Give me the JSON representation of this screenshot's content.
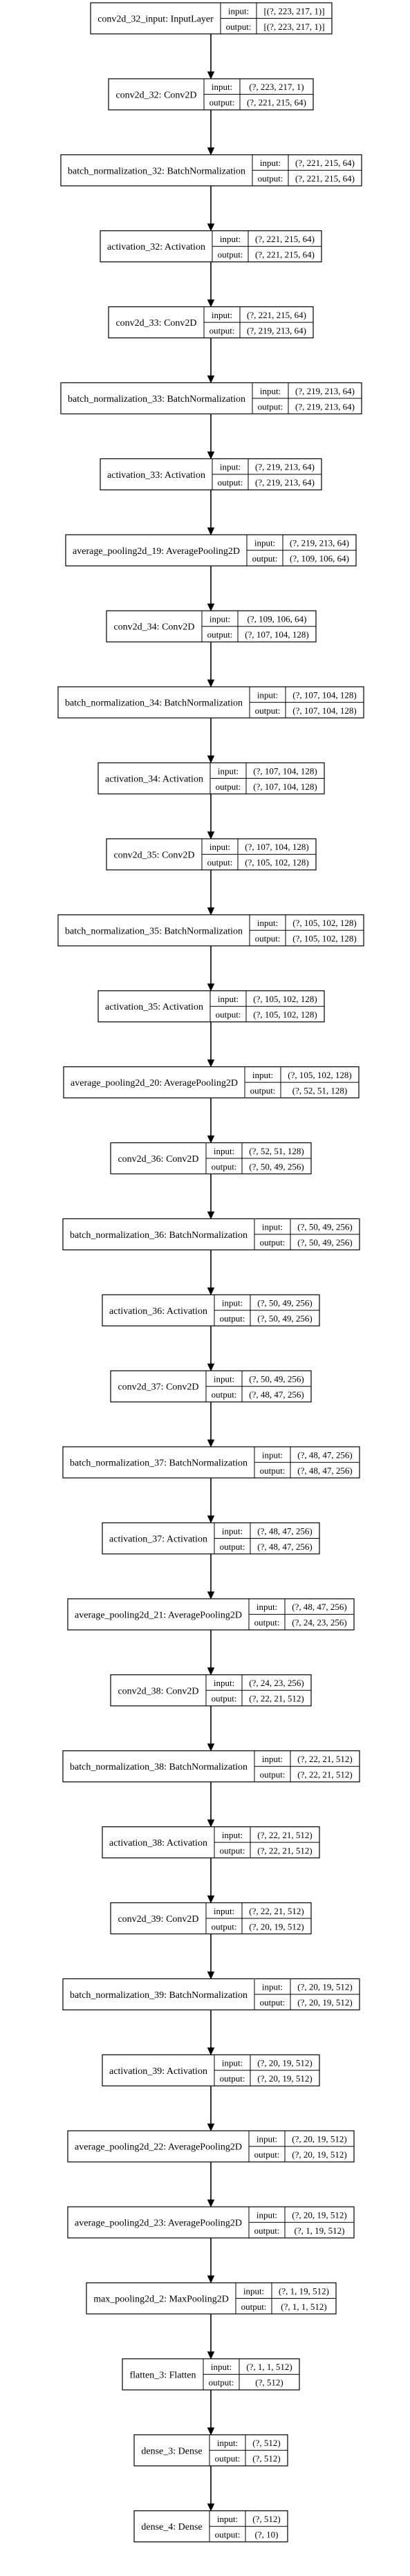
{
  "labels": {
    "input": "input:",
    "output": "output:"
  },
  "layers": [
    {
      "name": "conv2d_32_input: InputLayer",
      "input": "[(?, 223, 217, 1)]",
      "output": "[(?, 223, 217, 1)]"
    },
    {
      "name": "conv2d_32: Conv2D",
      "input": "(?, 223, 217, 1)",
      "output": "(?, 221, 215, 64)"
    },
    {
      "name": "batch_normalization_32: BatchNormalization",
      "input": "(?, 221, 215, 64)",
      "output": "(?, 221, 215, 64)"
    },
    {
      "name": "activation_32: Activation",
      "input": "(?, 221, 215, 64)",
      "output": "(?, 221, 215, 64)"
    },
    {
      "name": "conv2d_33: Conv2D",
      "input": "(?, 221, 215, 64)",
      "output": "(?, 219, 213, 64)"
    },
    {
      "name": "batch_normalization_33: BatchNormalization",
      "input": "(?, 219, 213, 64)",
      "output": "(?, 219, 213, 64)"
    },
    {
      "name": "activation_33: Activation",
      "input": "(?, 219, 213, 64)",
      "output": "(?, 219, 213, 64)"
    },
    {
      "name": "average_pooling2d_19: AveragePooling2D",
      "input": "(?, 219, 213, 64)",
      "output": "(?, 109, 106, 64)"
    },
    {
      "name": "conv2d_34: Conv2D",
      "input": "(?, 109, 106, 64)",
      "output": "(?, 107, 104, 128)"
    },
    {
      "name": "batch_normalization_34: BatchNormalization",
      "input": "(?, 107, 104, 128)",
      "output": "(?, 107, 104, 128)"
    },
    {
      "name": "activation_34: Activation",
      "input": "(?, 107, 104, 128)",
      "output": "(?, 107, 104, 128)"
    },
    {
      "name": "conv2d_35: Conv2D",
      "input": "(?, 107, 104, 128)",
      "output": "(?, 105, 102, 128)"
    },
    {
      "name": "batch_normalization_35: BatchNormalization",
      "input": "(?, 105, 102, 128)",
      "output": "(?, 105, 102, 128)"
    },
    {
      "name": "activation_35: Activation",
      "input": "(?, 105, 102, 128)",
      "output": "(?, 105, 102, 128)"
    },
    {
      "name": "average_pooling2d_20: AveragePooling2D",
      "input": "(?, 105, 102, 128)",
      "output": "(?, 52, 51, 128)"
    },
    {
      "name": "conv2d_36: Conv2D",
      "input": "(?, 52, 51, 128)",
      "output": "(?, 50, 49, 256)"
    },
    {
      "name": "batch_normalization_36: BatchNormalization",
      "input": "(?, 50, 49, 256)",
      "output": "(?, 50, 49, 256)"
    },
    {
      "name": "activation_36: Activation",
      "input": "(?, 50, 49, 256)",
      "output": "(?, 50, 49, 256)"
    },
    {
      "name": "conv2d_37: Conv2D",
      "input": "(?, 50, 49, 256)",
      "output": "(?, 48, 47, 256)"
    },
    {
      "name": "batch_normalization_37: BatchNormalization",
      "input": "(?, 48, 47, 256)",
      "output": "(?, 48, 47, 256)"
    },
    {
      "name": "activation_37: Activation",
      "input": "(?, 48, 47, 256)",
      "output": "(?, 48, 47, 256)"
    },
    {
      "name": "average_pooling2d_21: AveragePooling2D",
      "input": "(?, 48, 47, 256)",
      "output": "(?, 24, 23, 256)"
    },
    {
      "name": "conv2d_38: Conv2D",
      "input": "(?, 24, 23, 256)",
      "output": "(?, 22, 21, 512)"
    },
    {
      "name": "batch_normalization_38: BatchNormalization",
      "input": "(?, 22, 21, 512)",
      "output": "(?, 22, 21, 512)"
    },
    {
      "name": "activation_38: Activation",
      "input": "(?, 22, 21, 512)",
      "output": "(?, 22, 21, 512)"
    },
    {
      "name": "conv2d_39: Conv2D",
      "input": "(?, 22, 21, 512)",
      "output": "(?, 20, 19, 512)"
    },
    {
      "name": "batch_normalization_39: BatchNormalization",
      "input": "(?, 20, 19, 512)",
      "output": "(?, 20, 19, 512)"
    },
    {
      "name": "activation_39: Activation",
      "input": "(?, 20, 19, 512)",
      "output": "(?, 20, 19, 512)"
    },
    {
      "name": "average_pooling2d_22: AveragePooling2D",
      "input": "(?, 20, 19, 512)",
      "output": "(?, 20, 19, 512)"
    },
    {
      "name": "average_pooling2d_23: AveragePooling2D",
      "input": "(?, 20, 19, 512)",
      "output": "(?, 1, 19, 512)"
    },
    {
      "name": "max_pooling2d_2: MaxPooling2D",
      "input": "(?, 1, 19, 512)",
      "output": "(?, 1, 1, 512)"
    },
    {
      "name": "flatten_3: Flatten",
      "input": "(?, 1, 1, 512)",
      "output": "(?, 512)"
    },
    {
      "name": "dense_3: Dense",
      "input": "(?, 512)",
      "output": "(?, 512)"
    },
    {
      "name": "dense_4: Dense",
      "input": "(?, 512)",
      "output": "(?, 10)"
    }
  ]
}
